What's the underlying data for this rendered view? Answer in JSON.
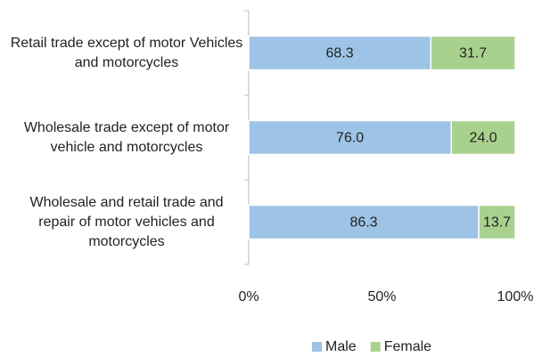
{
  "chart_data": {
    "type": "stacked_barh",
    "categories": [
      "Retail trade except of motor Vehicles and motorcycles",
      "Wholesale trade except of motor vehicle and motorcycles",
      "Wholesale and retail trade and repair of motor vehicles and motorcycles"
    ],
    "series": [
      {
        "name": "Male",
        "color": "#9dc3e6",
        "values": [
          68.3,
          76.0,
          86.3
        ],
        "value_labels": [
          "68.3",
          "76.0",
          "86.3"
        ]
      },
      {
        "name": "Female",
        "color": "#a9d18e",
        "values": [
          31.7,
          24.0,
          13.7
        ],
        "value_labels": [
          "31.7",
          "24.0",
          "13.7"
        ]
      }
    ],
    "xlim": [
      0,
      100
    ],
    "xticks": [
      {
        "value": 0,
        "label": "0%"
      },
      {
        "value": 50,
        "label": "50%"
      },
      {
        "value": 100,
        "label": "100%"
      }
    ],
    "legend": "bottom"
  }
}
